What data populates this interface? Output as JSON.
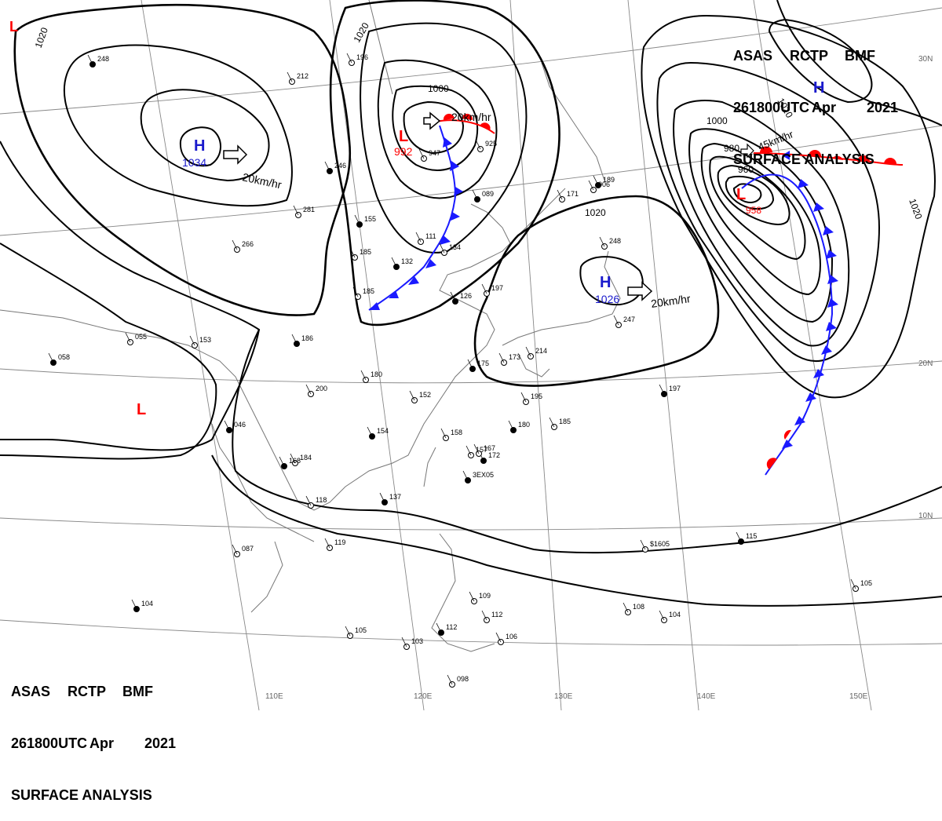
{
  "header": {
    "line1": [
      "ASAS",
      "RCTP",
      "BMF"
    ],
    "line2": [
      "261800UTC",
      "Apr",
      "2021"
    ],
    "line3": "SURFACE ANALYSIS"
  },
  "grid_labels": {
    "lon": [
      "110E",
      "120E",
      "130E",
      "140E",
      "150E"
    ],
    "lat": [
      "30N",
      "20N",
      "10N"
    ]
  },
  "isobar_labels": [
    "1020",
    "1020",
    "1000",
    "1020",
    "1000",
    "1020",
    "1020",
    "980",
    "960"
  ],
  "pressure_centers": [
    {
      "type": "H",
      "value": "1034",
      "motion": "20km/hr"
    },
    {
      "type": "L",
      "value": "992",
      "motion": "20km/hr"
    },
    {
      "type": "H",
      "value": "1026",
      "motion": "20km/hr"
    },
    {
      "type": "L",
      "value": "958",
      "motion": "45km/hr"
    },
    {
      "type": "H",
      "value": ""
    },
    {
      "type": "L",
      "value": ""
    },
    {
      "type": "L",
      "value": ""
    }
  ],
  "station_plots": [
    "248",
    "196",
    "212",
    "246",
    "281",
    "266",
    "155",
    "185",
    "185",
    "132",
    "111",
    "134",
    "126",
    "947",
    "925",
    "089",
    "197",
    "171",
    "189",
    "248",
    "247",
    "186",
    "180",
    "152",
    "154",
    "158",
    "157",
    "172",
    "195",
    "214",
    "180",
    "185",
    "200",
    "046",
    "055",
    "153",
    "058",
    "184",
    "118",
    "137",
    "119",
    "087",
    "104",
    "105",
    "103",
    "112",
    "109",
    "106",
    "115",
    "105",
    "104",
    "197",
    "098",
    "167",
    "175",
    "108",
    "112",
    "168",
    "173",
    "006",
    "3EX05",
    "$1605"
  ],
  "colors": {
    "cold_front": "#1a1aff",
    "warm_front": "#ff0000",
    "low_label": "#ff0000",
    "high_label": "#1a1acc",
    "isobar": "#000000",
    "coastline": "#777777"
  }
}
